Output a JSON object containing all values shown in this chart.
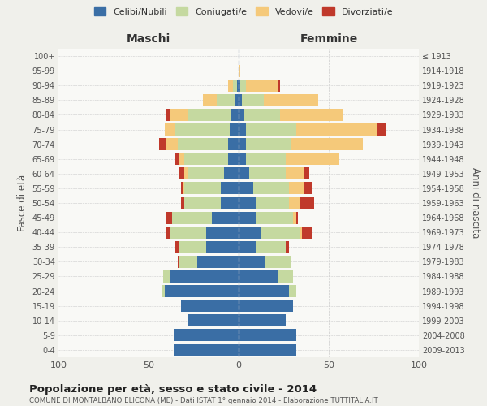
{
  "age_groups": [
    "0-4",
    "5-9",
    "10-14",
    "15-19",
    "20-24",
    "25-29",
    "30-34",
    "35-39",
    "40-44",
    "45-49",
    "50-54",
    "55-59",
    "60-64",
    "65-69",
    "70-74",
    "75-79",
    "80-84",
    "85-89",
    "90-94",
    "95-99",
    "100+"
  ],
  "birth_years": [
    "2009-2013",
    "2004-2008",
    "1999-2003",
    "1994-1998",
    "1989-1993",
    "1984-1988",
    "1979-1983",
    "1974-1978",
    "1969-1973",
    "1964-1968",
    "1959-1963",
    "1954-1958",
    "1949-1953",
    "1944-1948",
    "1939-1943",
    "1934-1938",
    "1929-1933",
    "1924-1928",
    "1919-1923",
    "1914-1918",
    "≤ 1913"
  ],
  "colors": {
    "celibe": "#3a6ea5",
    "coniugato": "#c5d9a0",
    "vedovo": "#f5c97a",
    "divorziato": "#c0392b"
  },
  "maschi": {
    "celibe": [
      36,
      36,
      28,
      32,
      41,
      38,
      23,
      18,
      18,
      15,
      10,
      10,
      8,
      6,
      6,
      5,
      4,
      2,
      1,
      0,
      0
    ],
    "coniugato": [
      0,
      0,
      0,
      0,
      2,
      4,
      10,
      15,
      20,
      22,
      20,
      20,
      20,
      24,
      28,
      30,
      24,
      10,
      2,
      0,
      0
    ],
    "vedovo": [
      0,
      0,
      0,
      0,
      0,
      0,
      0,
      0,
      0,
      0,
      0,
      1,
      2,
      3,
      6,
      6,
      10,
      8,
      3,
      0,
      0
    ],
    "divorziato": [
      0,
      0,
      0,
      0,
      0,
      0,
      1,
      2,
      2,
      3,
      2,
      1,
      3,
      2,
      4,
      0,
      2,
      0,
      0,
      0,
      0
    ]
  },
  "femmine": {
    "celibe": [
      32,
      32,
      26,
      30,
      28,
      22,
      15,
      10,
      12,
      10,
      10,
      8,
      6,
      4,
      4,
      4,
      3,
      2,
      1,
      0,
      0
    ],
    "coniugato": [
      0,
      0,
      0,
      0,
      4,
      8,
      14,
      16,
      22,
      20,
      18,
      20,
      20,
      22,
      25,
      28,
      20,
      12,
      3,
      0,
      0
    ],
    "vedovo": [
      0,
      0,
      0,
      0,
      0,
      0,
      0,
      0,
      1,
      2,
      6,
      8,
      10,
      30,
      40,
      45,
      35,
      30,
      18,
      1,
      0
    ],
    "divorziato": [
      0,
      0,
      0,
      0,
      0,
      0,
      0,
      2,
      6,
      1,
      8,
      5,
      3,
      0,
      0,
      5,
      0,
      0,
      1,
      0,
      0
    ]
  },
  "title": "Popolazione per età, sesso e stato civile - 2014",
  "subtitle": "COMUNE DI MONTALBANO ELICONA (ME) - Dati ISTAT 1° gennaio 2014 - Elaborazione TUTTITALIA.IT",
  "xlabel_left": "Maschi",
  "xlabel_right": "Femmine",
  "ylabel_left": "Fasce di età",
  "ylabel_right": "Anni di nascita",
  "xlim": 100,
  "bg_color": "#f0f0eb",
  "bar_bg": "#f9f9f6",
  "legend_labels": [
    "Celibi/Nubili",
    "Coniugati/e",
    "Vedovi/e",
    "Divorziati/e"
  ]
}
